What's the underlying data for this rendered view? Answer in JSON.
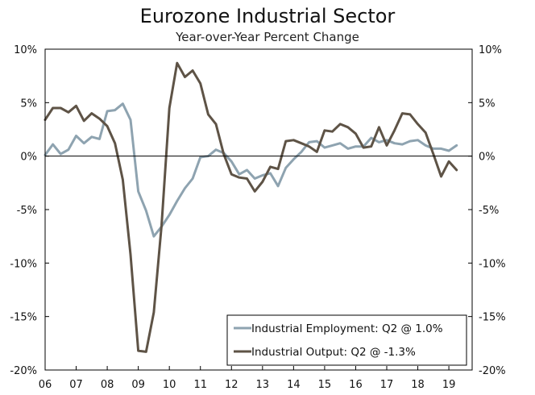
{
  "chart_data": {
    "type": "line",
    "title": "Eurozone Industrial Sector",
    "subtitle": "Year-over-Year Percent Change",
    "xlabel": "",
    "ylabel": "",
    "x_range": [
      2006,
      2019.75
    ],
    "ylim": [
      -20,
      10
    ],
    "y_ticks": [
      10,
      5,
      0,
      -5,
      -10,
      -15,
      -20
    ],
    "y_tick_labels": [
      "10%",
      "5%",
      "0%",
      "-5%",
      "-10%",
      "-15%",
      "-20%"
    ],
    "x_ticks": [
      2006,
      2007,
      2008,
      2009,
      2010,
      2011,
      2012,
      2013,
      2014,
      2015,
      2016,
      2017,
      2018,
      2019
    ],
    "x_tick_labels": [
      "06",
      "07",
      "08",
      "09",
      "10",
      "11",
      "12",
      "13",
      "14",
      "15",
      "16",
      "17",
      "18",
      "19"
    ],
    "legend_position": "bottom-right",
    "series": [
      {
        "name": "Industrial Employment: Q2 @ 1.0%",
        "color": "#8ea3b0",
        "x": [
          2006.0,
          2006.25,
          2006.5,
          2006.75,
          2007.0,
          2007.25,
          2007.5,
          2007.75,
          2008.0,
          2008.25,
          2008.5,
          2008.75,
          2009.0,
          2009.25,
          2009.5,
          2009.75,
          2010.0,
          2010.25,
          2010.5,
          2010.75,
          2011.0,
          2011.25,
          2011.5,
          2011.75,
          2012.0,
          2012.25,
          2012.5,
          2012.75,
          2013.0,
          2013.25,
          2013.5,
          2013.75,
          2014.0,
          2014.25,
          2014.5,
          2014.75,
          2015.0,
          2015.25,
          2015.5,
          2015.75,
          2016.0,
          2016.25,
          2016.5,
          2016.75,
          2017.0,
          2017.25,
          2017.5,
          2017.75,
          2018.0,
          2018.25,
          2018.5,
          2018.75,
          2019.0,
          2019.25
        ],
        "values": [
          0.1,
          1.1,
          0.2,
          0.6,
          1.9,
          1.2,
          1.8,
          1.6,
          4.2,
          4.3,
          4.9,
          3.4,
          -3.3,
          -5.1,
          -7.5,
          -6.6,
          -5.5,
          -4.2,
          -3.0,
          -2.1,
          -0.1,
          0.0,
          0.6,
          0.3,
          -0.5,
          -1.7,
          -1.3,
          -2.1,
          -1.8,
          -1.6,
          -2.8,
          -1.1,
          -0.3,
          0.4,
          1.3,
          1.4,
          0.8,
          1.0,
          1.2,
          0.7,
          0.9,
          0.9,
          1.7,
          1.3,
          1.5,
          1.2,
          1.1,
          1.4,
          1.5,
          1.0,
          0.7,
          0.7,
          0.5,
          1.0
        ]
      },
      {
        "name": "Industrial Output: Q2 @ -1.3%",
        "color": "#5e5346",
        "x": [
          2006.0,
          2006.25,
          2006.5,
          2006.75,
          2007.0,
          2007.25,
          2007.5,
          2007.75,
          2008.0,
          2008.25,
          2008.5,
          2008.75,
          2009.0,
          2009.25,
          2009.5,
          2009.75,
          2010.0,
          2010.25,
          2010.5,
          2010.75,
          2011.0,
          2011.25,
          2011.5,
          2011.75,
          2012.0,
          2012.25,
          2012.5,
          2012.75,
          2013.0,
          2013.25,
          2013.5,
          2013.75,
          2014.0,
          2014.25,
          2014.5,
          2014.75,
          2015.0,
          2015.25,
          2015.5,
          2015.75,
          2016.0,
          2016.25,
          2016.5,
          2016.75,
          2017.0,
          2017.25,
          2017.5,
          2017.75,
          2018.0,
          2018.25,
          2018.5,
          2018.75,
          2019.0,
          2019.25
        ],
        "values": [
          3.4,
          4.5,
          4.5,
          4.1,
          4.7,
          3.3,
          4.0,
          3.5,
          2.8,
          1.2,
          -2.2,
          -9.2,
          -18.2,
          -18.3,
          -14.6,
          -6.5,
          4.5,
          8.7,
          7.4,
          8.0,
          6.8,
          3.9,
          3.0,
          0.2,
          -1.7,
          -2.0,
          -2.1,
          -3.3,
          -2.4,
          -1.0,
          -1.2,
          1.4,
          1.5,
          1.2,
          0.9,
          0.4,
          2.4,
          2.3,
          3.0,
          2.7,
          2.1,
          0.8,
          0.9,
          2.7,
          1.0,
          2.4,
          4.0,
          3.9,
          3.0,
          2.2,
          0.2,
          -1.9,
          -0.5,
          -1.3
        ]
      }
    ]
  }
}
